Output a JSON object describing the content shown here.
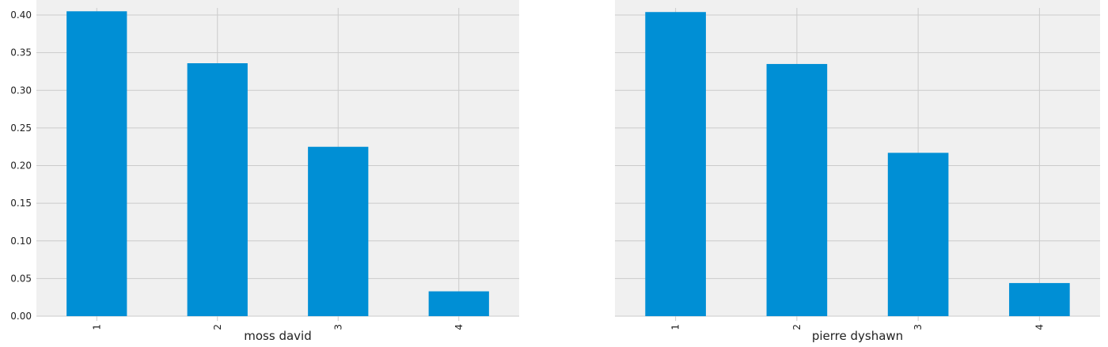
{
  "colors": {
    "bar": "#008fd5",
    "plot_background": "#f0f0f0",
    "grid": "#cbcbcb",
    "text": "#222222"
  },
  "chart_data": [
    {
      "type": "bar",
      "categories": [
        "1",
        "2",
        "3",
        "4"
      ],
      "values": [
        0.405,
        0.336,
        0.225,
        0.033
      ],
      "xlabel": "moss david",
      "ylabel": "",
      "ylim": [
        0,
        0.42
      ],
      "yticks": [
        "0.00",
        "0.05",
        "0.10",
        "0.15",
        "0.20",
        "0.25",
        "0.30",
        "0.35",
        "0.40"
      ],
      "ytick_labels_visible": true,
      "grid": true,
      "xtick_rotation": "vertical"
    },
    {
      "type": "bar",
      "categories": [
        "1",
        "2",
        "3",
        "4"
      ],
      "values": [
        0.404,
        0.335,
        0.217,
        0.044
      ],
      "xlabel": "pierre dyshawn",
      "ylabel": "",
      "ylim": [
        0,
        0.42
      ],
      "yticks": [
        "0.00",
        "0.05",
        "0.10",
        "0.15",
        "0.20",
        "0.25",
        "0.30",
        "0.35",
        "0.40"
      ],
      "ytick_labels_visible": false,
      "grid": true,
      "xtick_rotation": "vertical"
    }
  ]
}
